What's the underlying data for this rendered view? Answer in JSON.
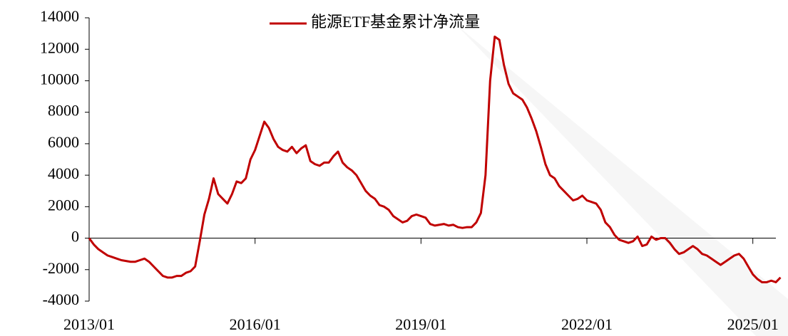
{
  "chart_data": {
    "type": "line",
    "x": [
      "2013/01",
      "2013/02",
      "2013/03",
      "2013/04",
      "2013/05",
      "2013/06",
      "2013/07",
      "2013/08",
      "2013/09",
      "2013/10",
      "2013/11",
      "2013/12",
      "2014/01",
      "2014/02",
      "2014/03",
      "2014/04",
      "2014/05",
      "2014/06",
      "2014/07",
      "2014/08",
      "2014/09",
      "2014/10",
      "2014/11",
      "2014/12",
      "2015/01",
      "2015/02",
      "2015/03",
      "2015/04",
      "2015/05",
      "2015/06",
      "2015/07",
      "2015/08",
      "2015/09",
      "2015/10",
      "2015/11",
      "2015/12",
      "2016/01",
      "2016/02",
      "2016/03",
      "2016/04",
      "2016/05",
      "2016/06",
      "2016/07",
      "2016/08",
      "2016/09",
      "2016/10",
      "2016/11",
      "2016/12",
      "2017/01",
      "2017/02",
      "2017/03",
      "2017/04",
      "2017/05",
      "2017/06",
      "2017/07",
      "2017/08",
      "2017/09",
      "2017/10",
      "2017/11",
      "2017/12",
      "2018/01",
      "2018/02",
      "2018/03",
      "2018/04",
      "2018/05",
      "2018/06",
      "2018/07",
      "2018/08",
      "2018/09",
      "2018/10",
      "2018/11",
      "2018/12",
      "2019/01",
      "2019/02",
      "2019/03",
      "2019/04",
      "2019/05",
      "2019/06",
      "2019/07",
      "2019/08",
      "2019/09",
      "2019/10",
      "2019/11",
      "2019/12",
      "2020/01",
      "2020/02",
      "2020/03",
      "2020/04",
      "2020/05",
      "2020/06",
      "2020/07",
      "2020/08",
      "2020/09",
      "2020/10",
      "2020/11",
      "2020/12",
      "2021/01",
      "2021/02",
      "2021/03",
      "2021/04",
      "2021/05",
      "2021/06",
      "2021/07",
      "2021/08",
      "2021/09",
      "2021/10",
      "2021/11",
      "2021/12",
      "2022/01",
      "2022/02",
      "2022/03",
      "2022/04",
      "2022/05",
      "2022/06",
      "2022/07",
      "2022/08",
      "2022/09",
      "2022/10",
      "2022/11",
      "2022/12",
      "2023/01",
      "2023/02",
      "2023/03",
      "2023/04",
      "2023/05",
      "2023/06",
      "2023/07",
      "2023/08",
      "2023/09",
      "2023/10",
      "2023/11",
      "2023/12",
      "2024/01",
      "2024/02",
      "2024/03",
      "2024/04",
      "2024/05",
      "2024/06",
      "2024/07",
      "2024/08",
      "2024/09",
      "2024/10",
      "2024/11",
      "2024/12",
      "2025/01",
      "2025/02",
      "2025/03",
      "2025/04",
      "2025/05",
      "2025/06",
      "2025/07"
    ],
    "series": [
      {
        "name": "能源ETF基金累计净流量",
        "color": "#c00000",
        "values": [
          0,
          -400,
          -700,
          -900,
          -1100,
          -1200,
          -1300,
          -1400,
          -1450,
          -1500,
          -1500,
          -1400,
          -1300,
          -1500,
          -1800,
          -2100,
          -2400,
          -2500,
          -2500,
          -2400,
          -2400,
          -2200,
          -2100,
          -1800,
          -200,
          1500,
          2500,
          3800,
          2800,
          2500,
          2200,
          2800,
          3600,
          3500,
          3800,
          5000,
          5600,
          6500,
          7400,
          7000,
          6300,
          5800,
          5600,
          5500,
          5800,
          5400,
          5700,
          5900,
          4900,
          4700,
          4600,
          4800,
          4800,
          5200,
          5500,
          4800,
          4500,
          4300,
          4000,
          3500,
          3000,
          2700,
          2500,
          2100,
          2000,
          1800,
          1400,
          1200,
          1000,
          1100,
          1400,
          1500,
          1400,
          1300,
          900,
          800,
          850,
          900,
          800,
          850,
          700,
          650,
          700,
          700,
          1000,
          1600,
          4000,
          10000,
          12800,
          12600,
          11000,
          9800,
          9200,
          9000,
          8800,
          8300,
          7600,
          6800,
          5800,
          4700,
          4000,
          3800,
          3300,
          3000,
          2700,
          2400,
          2500,
          2700,
          2400,
          2300,
          2200,
          1800,
          1000,
          700,
          200,
          -100,
          -200,
          -300,
          -200,
          100,
          -500,
          -400,
          100,
          -100,
          0,
          0,
          -300,
          -700,
          -1000,
          -900,
          -700,
          -500,
          -700,
          -1000,
          -1100,
          -1300,
          -1500,
          -1700,
          -1500,
          -1300,
          -1100,
          -1000,
          -1300,
          -1800,
          -2300,
          -2600,
          -2800,
          -2800,
          -2700,
          -2800,
          -2500
        ]
      }
    ],
    "xlim": [
      "2013/01",
      "2025/06"
    ],
    "xticks": [
      "2013/01",
      "2016/01",
      "2019/01",
      "2022/01",
      "2025/01"
    ],
    "ylim": [
      -4000,
      14000
    ],
    "yticks": [
      -4000,
      -2000,
      0,
      2000,
      4000,
      6000,
      8000,
      10000,
      12000,
      14000
    ],
    "legend": "top"
  }
}
